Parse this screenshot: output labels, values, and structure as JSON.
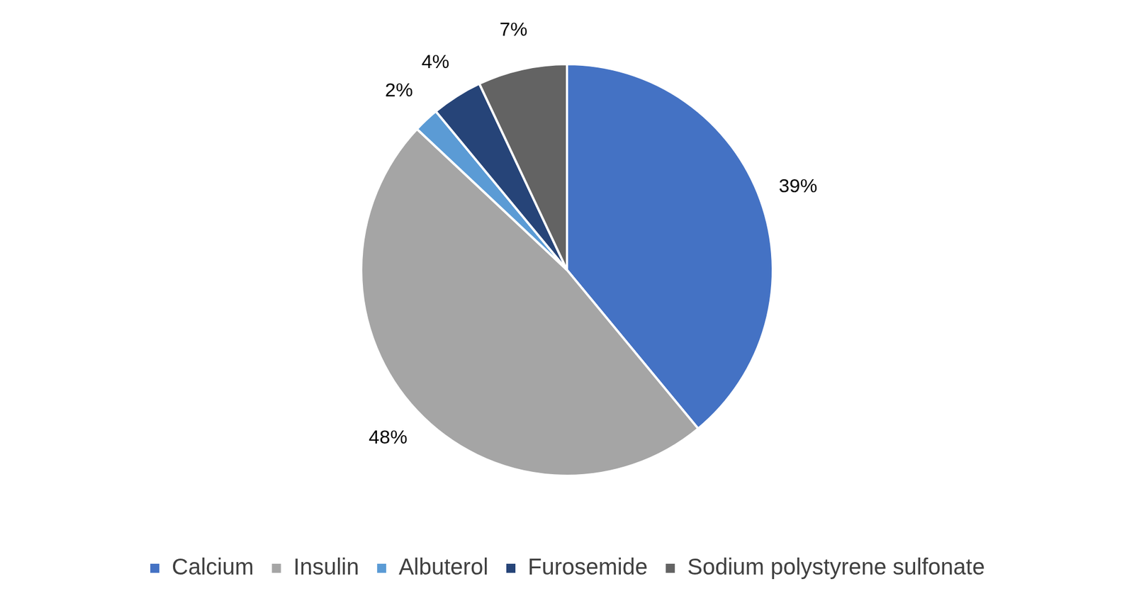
{
  "chart_data": {
    "type": "pie",
    "categories": [
      "Calcium",
      "Insulin",
      "Albuterol",
      "Furosemide",
      "Sodium polystyrene sulfonate"
    ],
    "values": [
      39,
      48,
      2,
      4,
      7
    ],
    "value_labels": [
      "39%",
      "48%",
      "2%",
      "4%",
      "7%"
    ],
    "colors": [
      "#4472c4",
      "#a5a5a5",
      "#5b9bd5",
      "#264478",
      "#636363"
    ],
    "data_labels": true,
    "legend": "bottom"
  }
}
